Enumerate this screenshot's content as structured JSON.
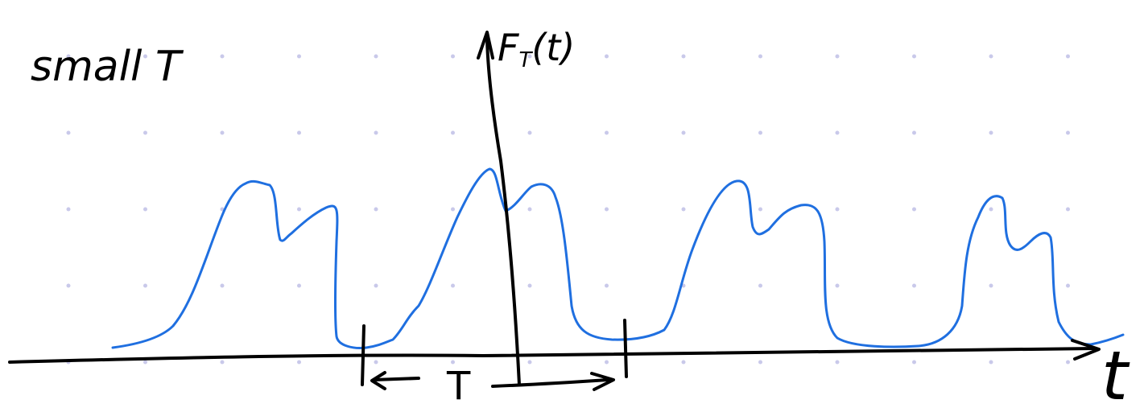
{
  "labels": {
    "title": "small T",
    "y_axis_label": {
      "main": "F",
      "subscript": "T",
      "argument": "(t)"
    },
    "period": "T",
    "x_axis_label": "t"
  }
}
